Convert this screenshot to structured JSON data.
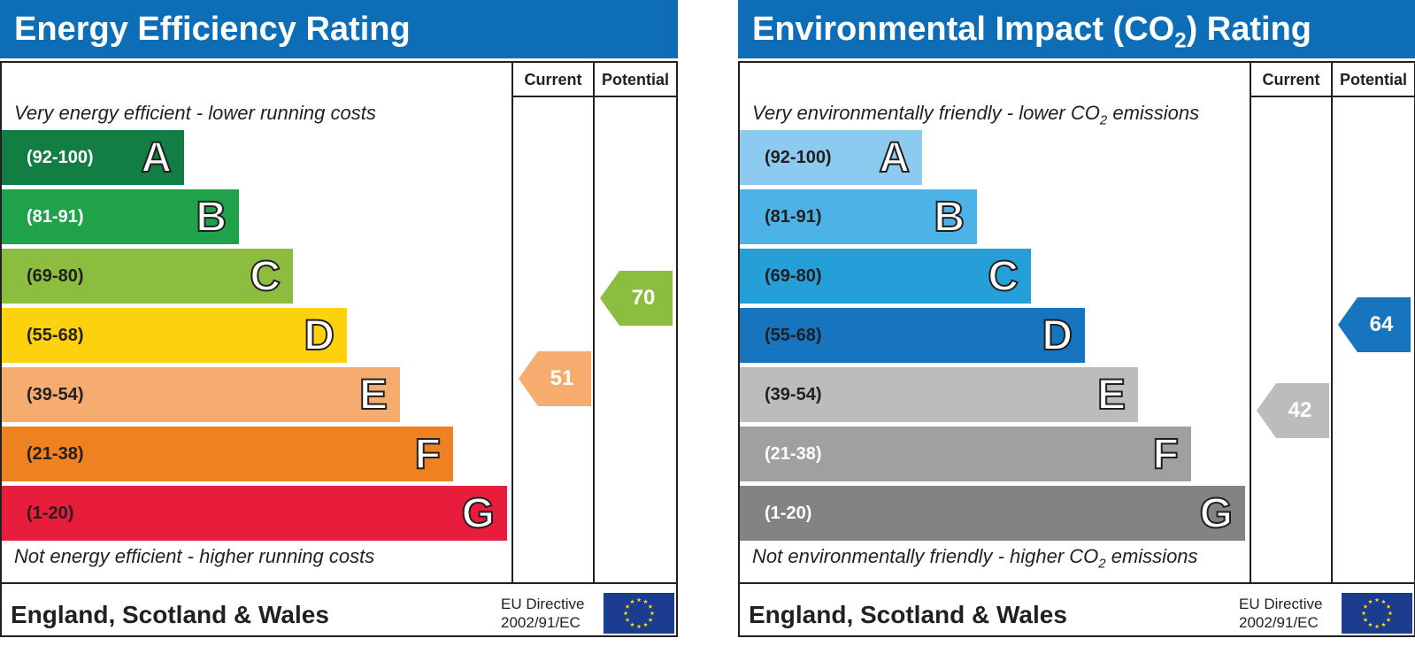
{
  "charts": [
    {
      "title": "Energy Efficiency Rating",
      "column_current": "Current",
      "column_potential": "Potential",
      "top_note": "Very energy efficient - lower running costs",
      "bottom_note": "Not energy efficient - higher running costs",
      "footer_region": "England, Scotland & Wales",
      "directive_line1": "EU Directive",
      "directive_line2": "2002/91/EC",
      "bands": [
        {
          "range": "(92-100)",
          "letter": "A",
          "color": "#127e44",
          "text_color": "#ffffff"
        },
        {
          "range": "(81-91)",
          "letter": "B",
          "color": "#20a24b",
          "text_color": "#ffffff"
        },
        {
          "range": "(69-80)",
          "letter": "C",
          "color": "#8cbd3f",
          "text_color": "#231f20"
        },
        {
          "range": "(55-68)",
          "letter": "D",
          "color": "#fcd20e",
          "text_color": "#231f20"
        },
        {
          "range": "(39-54)",
          "letter": "E",
          "color": "#f6ab6f",
          "text_color": "#231f20"
        },
        {
          "range": "(21-38)",
          "letter": "F",
          "color": "#ef8220",
          "text_color": "#231f20"
        },
        {
          "range": "(1-20)",
          "letter": "G",
          "color": "#e71d3b",
          "text_color": "#231f20"
        }
      ],
      "current": {
        "value": "51",
        "color": "#f6ab6f"
      },
      "potential": {
        "value": "70",
        "color": "#8cbd3f"
      }
    },
    {
      "title_main": "Environmental Impact (CO",
      "title_sub": "2",
      "title_tail": ") Rating",
      "column_current": "Current",
      "column_potential": "Potential",
      "top_note_main": "Very environmentally friendly - lower CO",
      "top_note_sub": "2",
      "top_note_tail": " emissions",
      "bottom_note_main": "Not environmentally friendly - higher CO",
      "bottom_note_sub": "2",
      "bottom_note_tail": " emissions",
      "footer_region": "England, Scotland & Wales",
      "directive_line1": "EU Directive",
      "directive_line2": "2002/91/EC",
      "bands": [
        {
          "range": "(92-100)",
          "letter": "A",
          "color": "#8ccbef",
          "text_color": "#231f20"
        },
        {
          "range": "(81-91)",
          "letter": "B",
          "color": "#4db2e6",
          "text_color": "#231f20"
        },
        {
          "range": "(69-80)",
          "letter": "C",
          "color": "#259fd8",
          "text_color": "#231f20"
        },
        {
          "range": "(55-68)",
          "letter": "D",
          "color": "#1774bf",
          "text_color": "#231f20"
        },
        {
          "range": "(39-54)",
          "letter": "E",
          "color": "#bdbcbb",
          "text_color": "#231f20"
        },
        {
          "range": "(21-38)",
          "letter": "F",
          "color": "#a0a0a0",
          "text_color": "#ffffff"
        },
        {
          "range": "(1-20)",
          "letter": "G",
          "color": "#838383",
          "text_color": "#ffffff"
        }
      ],
      "current": {
        "value": "42",
        "color": "#bdbcbb"
      },
      "potential": {
        "value": "64",
        "color": "#1774bf"
      }
    }
  ],
  "chart_data": [
    {
      "type": "bar",
      "title": "Energy Efficiency Rating",
      "categories": [
        "A",
        "B",
        "C",
        "D",
        "E",
        "F",
        "G"
      ],
      "ranges": [
        "(92-100)",
        "(81-91)",
        "(69-80)",
        "(55-68)",
        "(39-54)",
        "(21-38)",
        "(1-20)"
      ],
      "series": [
        {
          "name": "Current",
          "value": 51
        },
        {
          "name": "Potential",
          "value": 70
        }
      ]
    },
    {
      "type": "bar",
      "title": "Environmental Impact (CO2) Rating",
      "categories": [
        "A",
        "B",
        "C",
        "D",
        "E",
        "F",
        "G"
      ],
      "ranges": [
        "(92-100)",
        "(81-91)",
        "(69-80)",
        "(55-68)",
        "(39-54)",
        "(21-38)",
        "(1-20)"
      ],
      "series": [
        {
          "name": "Current",
          "value": 42
        },
        {
          "name": "Potential",
          "value": 64
        }
      ]
    }
  ]
}
